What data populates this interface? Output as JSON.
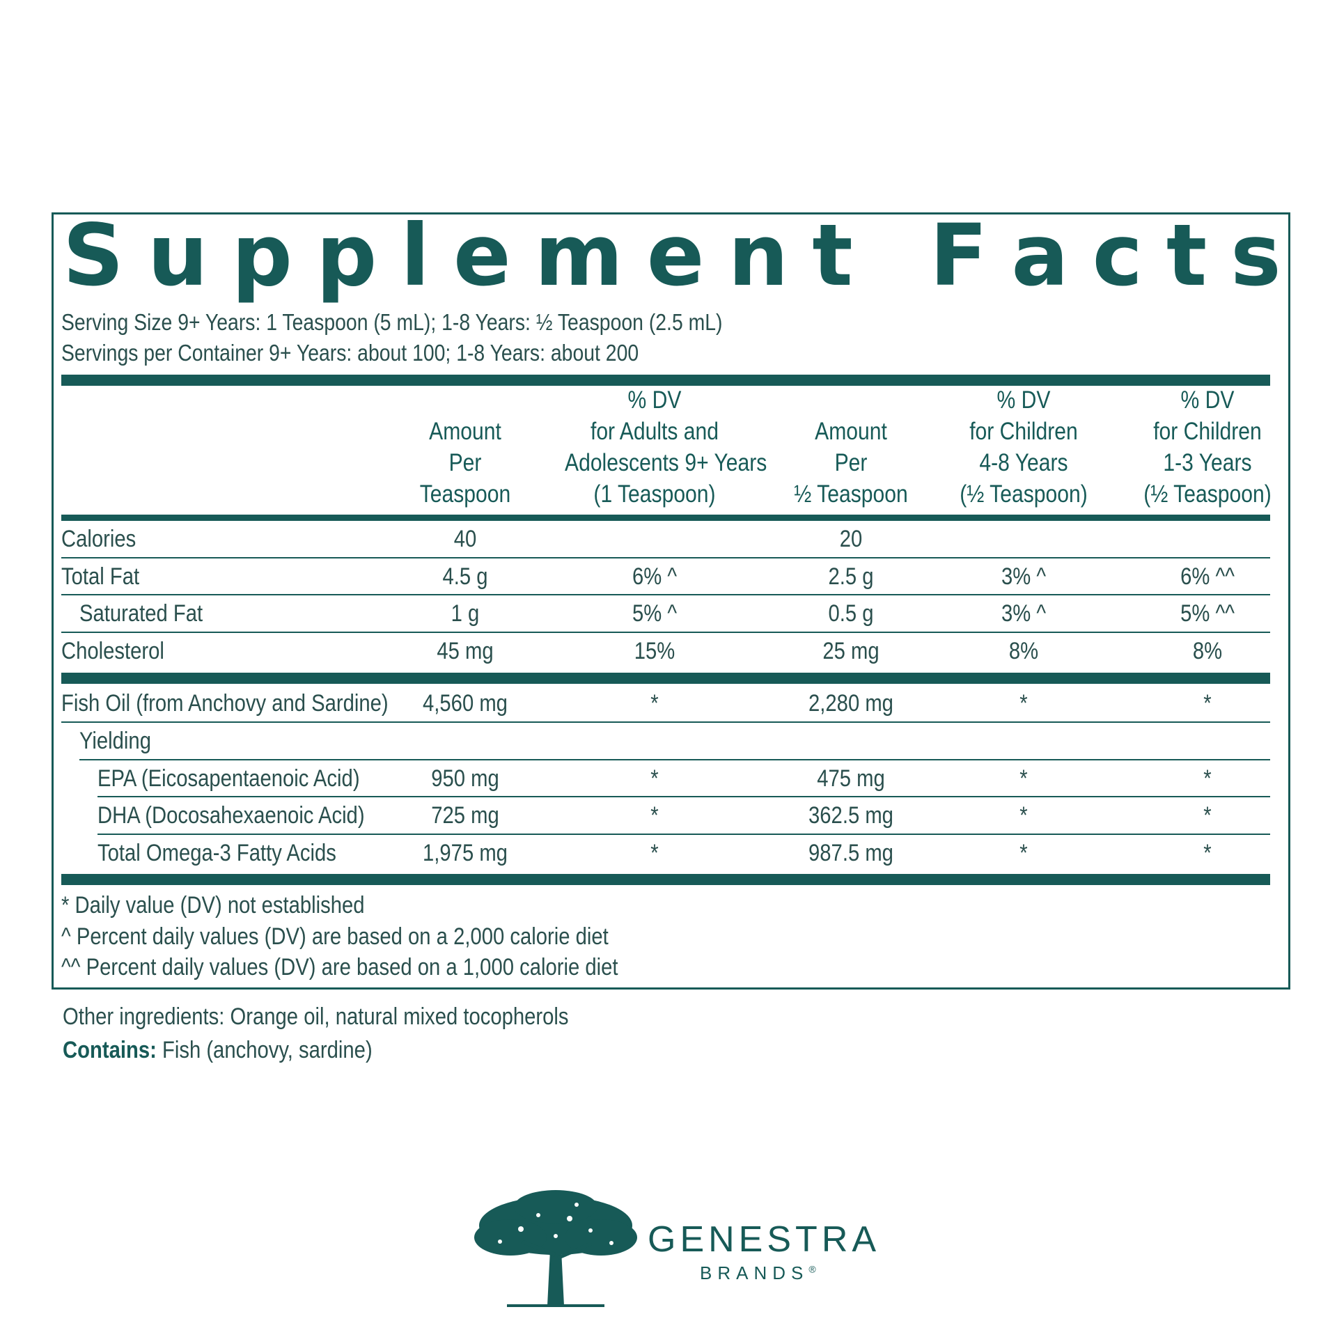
{
  "title_letters": [
    "S",
    "u",
    "p",
    "p",
    "l",
    "e",
    "m",
    "e",
    "n",
    "t",
    " ",
    "F",
    "a",
    "c",
    "t",
    "s"
  ],
  "serving_size": "Serving Size 9+ Years: 1 Teaspoon (5 mL); 1-8 Years: ½ Teaspoon (2.5 mL)",
  "servings_per_container": "Servings per Container 9+ Years: about 100; 1-8 Years: about 200",
  "headers": [
    [
      "Amount",
      "Per",
      "Teaspoon"
    ],
    [
      "% DV",
      "for Adults and",
      "Adolescents 9+ Years",
      "(1 Teaspoon)"
    ],
    [
      "Amount",
      "Per",
      "½ Teaspoon"
    ],
    [
      "% DV",
      "for Children",
      "4-8 Years",
      "(½ Teaspoon)"
    ],
    [
      "% DV",
      "for Children",
      "1-3 Years",
      "(½ Teaspoon)"
    ]
  ],
  "rows": [
    {
      "label": "Calories",
      "values": [
        "40",
        "",
        "20",
        "",
        ""
      ]
    },
    {
      "label": "Total Fat",
      "values": [
        "4.5 g",
        "6% ^",
        "2.5 g",
        "3% ^",
        "6% ^^"
      ]
    },
    {
      "label": "Saturated Fat",
      "values": [
        "1 g",
        "5% ^",
        "0.5 g",
        "3% ^",
        "5% ^^"
      ]
    },
    {
      "label": "Cholesterol",
      "values": [
        "45 mg",
        "15%",
        "25 mg",
        "8%",
        "8%"
      ]
    },
    {
      "label": "Fish Oil (from Anchovy and Sardine)",
      "values": [
        "4,560 mg",
        "*",
        "2,280 mg",
        "*",
        "*"
      ]
    },
    {
      "label": "Yielding",
      "values": [
        "",
        "",
        "",
        "",
        ""
      ]
    },
    {
      "label": "EPA (Eicosapentaenoic Acid)",
      "values": [
        "950 mg",
        "*",
        "475 mg",
        "*",
        "*"
      ]
    },
    {
      "label": "DHA (Docosahexaenoic Acid)",
      "values": [
        "725 mg",
        "*",
        "362.5 mg",
        "*",
        "*"
      ]
    },
    {
      "label": "Total Omega-3 Fatty Acids",
      "values": [
        "1,975 mg",
        "*",
        "987.5 mg",
        "*",
        "*"
      ]
    }
  ],
  "footnotes": [
    "* Daily value (DV) not established",
    "^ Percent daily values (DV) are based on a 2,000 calorie diet",
    "^^ Percent daily values (DV) are based on a 1,000 calorie diet"
  ],
  "other_ingredients": "Other ingredients: Orange oil, natural mixed tocopherols",
  "contains_label": "Contains:",
  "contains_value": "Fish (anchovy, sardine)",
  "brand": {
    "name": "GENESTRA",
    "sub": "BRANDS",
    "registered": "®"
  },
  "colors": {
    "primary": "#175a57",
    "text": "#2a4f4d",
    "background": "#ffffff"
  }
}
